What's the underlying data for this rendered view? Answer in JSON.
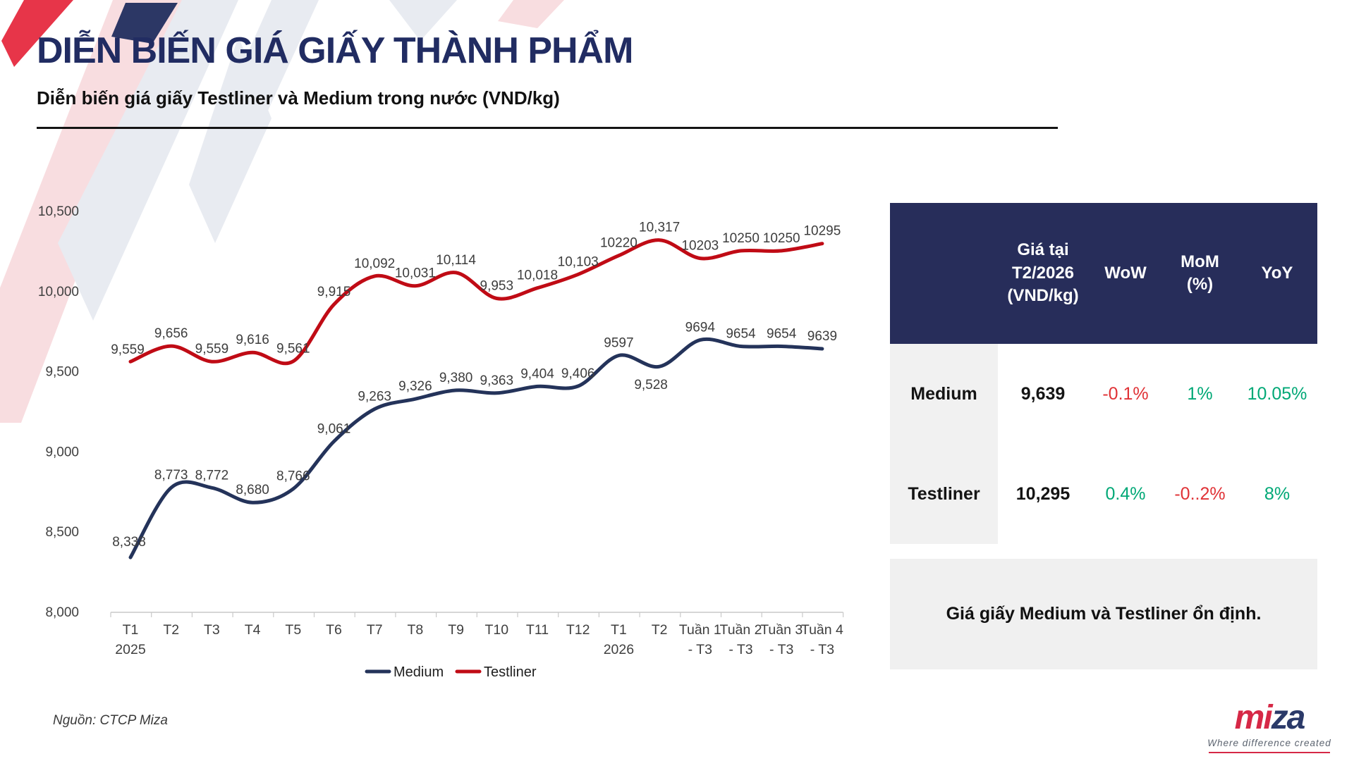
{
  "page": {
    "title": "DIỄN BIẾN GIÁ GIẤY THÀNH PHẨM",
    "subtitle": "Diễn biến giá giấy Testliner và Medium trong nước (VND/kg)",
    "source": "Nguồn: CTCP Miza"
  },
  "chart_data": {
    "type": "line",
    "title": "Diễn biến giá giấy Testliner và Medium trong nước (VND/kg)",
    "grid": "off",
    "legend_position": "bottom",
    "ylim": [
      8000,
      10500
    ],
    "y_ticks": [
      "8,000",
      "8,500",
      "9,000",
      "9,500",
      "10,000",
      "10,500"
    ],
    "categories": [
      [
        "T1",
        "2025"
      ],
      [
        "T2"
      ],
      [
        "T3"
      ],
      [
        "T4"
      ],
      [
        "T5"
      ],
      [
        "T6"
      ],
      [
        "T7"
      ],
      [
        "T8"
      ],
      [
        "T9"
      ],
      [
        "T10"
      ],
      [
        "T11"
      ],
      [
        "T12"
      ],
      [
        "T1",
        "2026"
      ],
      [
        "T2"
      ],
      [
        "Tuần 1",
        "- T3"
      ],
      [
        "Tuần 2",
        "- T3"
      ],
      [
        "Tuần 3",
        "- T3"
      ],
      [
        "Tuần 4",
        "- T3"
      ]
    ],
    "series": [
      {
        "name": "Medium",
        "color": "#24335a",
        "values": [
          8338,
          8773,
          8772,
          8680,
          8766,
          9061,
          9263,
          9326,
          9380,
          9363,
          9404,
          9406,
          9597,
          9528,
          9694,
          9654,
          9654,
          9639
        ],
        "labels": [
          "8,338",
          "8,773",
          "8,772",
          "8,680",
          "8,766",
          "9,061",
          "9,263",
          "9,326",
          "9,380",
          "9,363",
          "9,404",
          "9,406",
          "9597",
          "9,528",
          "9694",
          "9654",
          "9654",
          "9639"
        ]
      },
      {
        "name": "Testliner",
        "color": "#c00b15",
        "values": [
          9559,
          9656,
          9559,
          9616,
          9561,
          9915,
          10092,
          10031,
          10114,
          9953,
          10018,
          10103,
          10220,
          10317,
          10203,
          10250,
          10250,
          10295
        ],
        "labels": [
          "9,559",
          "9,656",
          "9,559",
          "9,616",
          "9,561",
          "9,915",
          "10,092",
          "10,031",
          "10,114",
          "9,953",
          "10,018",
          "10,103",
          "10220",
          "10,317",
          "10203",
          "10250",
          "10250",
          "10295"
        ]
      }
    ],
    "legend": [
      "Medium",
      "Testliner"
    ]
  },
  "table": {
    "header": {
      "price": "Giá tại\nT2/2026\n(VND/kg)",
      "wow": "WoW",
      "mom": "MoM\n(%)",
      "yoy": "YoY"
    },
    "rows": [
      {
        "name": "Medium",
        "price": "9,639",
        "wow": {
          "text": "-0.1%",
          "dir": "neg"
        },
        "mom": {
          "text": "1%",
          "dir": "pos"
        },
        "yoy": {
          "text": "10.05%",
          "dir": "pos"
        }
      },
      {
        "name": "Testliner",
        "price": "10,295",
        "wow": {
          "text": "0.4%",
          "dir": "pos"
        },
        "mom": {
          "text": "-0..2%",
          "dir": "neg"
        },
        "yoy": {
          "text": "8%",
          "dir": "pos"
        }
      }
    ],
    "note": "Giá giấy Medium và Testliner ổn định."
  },
  "footer": {
    "logo_part1": "mi",
    "logo_part2": "za",
    "logo_tagline": "Where difference created"
  },
  "colors": {
    "accent_navy": "#272d5a",
    "medium_line": "#24335a",
    "testliner_line": "#c00b15",
    "positive": "#00a876",
    "negative": "#e03236",
    "logo_red": "#d62846",
    "logo_navy": "#2b3a69"
  }
}
